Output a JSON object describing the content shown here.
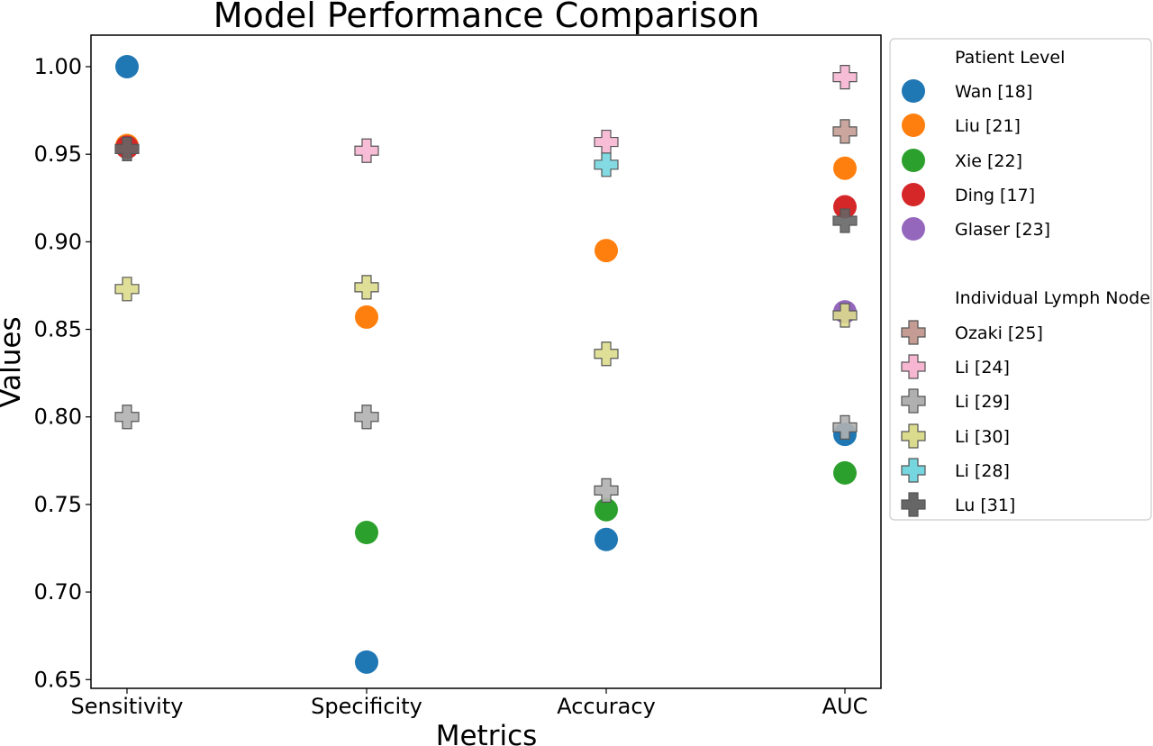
{
  "chart_data": {
    "type": "scatter",
    "title": "Model Performance Comparison",
    "xlabel": "Metrics",
    "ylabel": "Values",
    "categories": [
      "Sensitivity",
      "Specificity",
      "Accuracy",
      "AUC"
    ],
    "ylim": [
      0.645,
      1.018
    ],
    "yticks": [
      {
        "value": 0.65,
        "label": "0.65"
      },
      {
        "value": 0.7,
        "label": "0.70"
      },
      {
        "value": 0.75,
        "label": "0.75"
      },
      {
        "value": 0.8,
        "label": "0.80"
      },
      {
        "value": 0.85,
        "label": "0.85"
      },
      {
        "value": 0.9,
        "label": "0.90"
      },
      {
        "value": 0.95,
        "label": "0.95"
      },
      {
        "value": 1.0,
        "label": "1.00"
      }
    ],
    "grid": false,
    "legend_placement": "outside right",
    "legend_groups": [
      {
        "title": "Patient Level",
        "marker": "circle"
      },
      {
        "title": "Individual Lymph Node",
        "marker": "plus"
      }
    ],
    "series": [
      {
        "name": "Wan [18]",
        "group": 0,
        "color": "#1f77b4",
        "values": [
          1.0,
          0.66,
          0.73,
          0.79
        ]
      },
      {
        "name": "Liu [21]",
        "group": 0,
        "color": "#ff7f0e",
        "values": [
          0.955,
          0.857,
          0.895,
          0.942
        ]
      },
      {
        "name": "Xie [22]",
        "group": 0,
        "color": "#2ca02c",
        "values": [
          null,
          0.734,
          0.747,
          0.768
        ]
      },
      {
        "name": "Ding [17]",
        "group": 0,
        "color": "#d62728",
        "values": [
          0.954,
          null,
          null,
          0.92
        ]
      },
      {
        "name": "Glaser [23]",
        "group": 0,
        "color": "#9467bd",
        "values": [
          null,
          null,
          null,
          0.86
        ]
      },
      {
        "name": "Ozaki [25]",
        "group": 1,
        "color": "#c49c94",
        "values": [
          null,
          null,
          null,
          0.963
        ]
      },
      {
        "name": "Li [24]",
        "group": 1,
        "color": "#f7b6d2",
        "values": [
          null,
          0.952,
          0.957,
          0.994
        ]
      },
      {
        "name": "Li [29]",
        "group": 1,
        "color": "#b0b0b0",
        "values": [
          0.8,
          0.8,
          0.758,
          0.794
        ]
      },
      {
        "name": "Li [30]",
        "group": 1,
        "color": "#dbdb8d",
        "values": [
          0.873,
          0.874,
          0.836,
          0.858
        ]
      },
      {
        "name": "Li [28]",
        "group": 1,
        "color": "#76d6e0",
        "values": [
          null,
          null,
          0.944,
          null
        ]
      },
      {
        "name": "Lu [31]",
        "group": 1,
        "color": "#666666",
        "values": [
          0.953,
          null,
          null,
          0.912
        ]
      }
    ]
  }
}
